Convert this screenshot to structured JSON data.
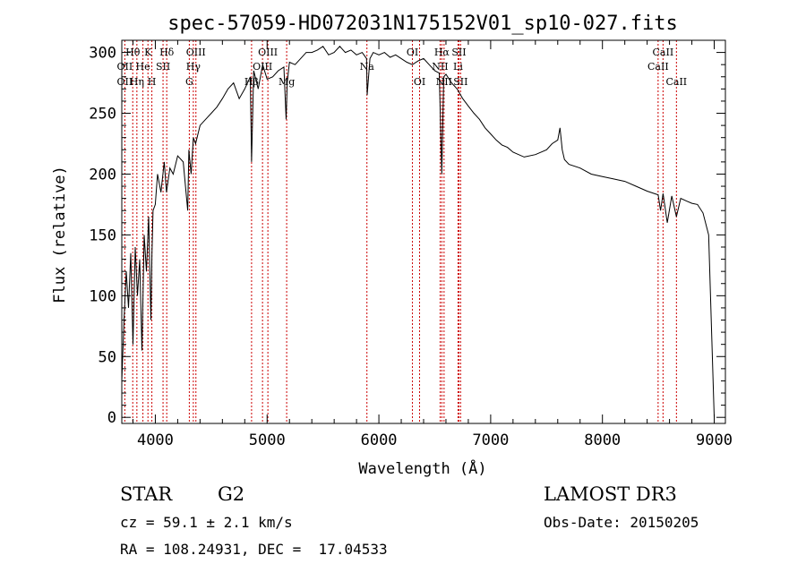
{
  "chart_data": {
    "type": "line",
    "title": "spec-57059-HD072031N175152V01_sp10-027.fits",
    "xlabel": "Wavelength (Å)",
    "ylabel": "Flux (relative)",
    "xlim": [
      3700,
      9100
    ],
    "ylim": [
      -5,
      310
    ],
    "x_ticks": [
      4000,
      5000,
      6000,
      7000,
      8000,
      9000
    ],
    "y_ticks": [
      0,
      50,
      100,
      150,
      200,
      250,
      300
    ],
    "grid": false,
    "series": [
      {
        "name": "flux",
        "x": [
          3700,
          3720,
          3740,
          3760,
          3780,
          3800,
          3820,
          3840,
          3860,
          3880,
          3900,
          3920,
          3940,
          3960,
          3970,
          3980,
          4000,
          4020,
          4050,
          4080,
          4100,
          4130,
          4160,
          4200,
          4250,
          4290,
          4300,
          4320,
          4340,
          4360,
          4400,
          4450,
          4500,
          4550,
          4600,
          4650,
          4700,
          4750,
          4800,
          4850,
          4861,
          4880,
          4920,
          4960,
          5000,
          5050,
          5100,
          5150,
          5170,
          5180,
          5200,
          5250,
          5300,
          5350,
          5400,
          5450,
          5500,
          5550,
          5600,
          5650,
          5700,
          5750,
          5800,
          5850,
          5890,
          5895,
          5920,
          5950,
          6000,
          6050,
          6100,
          6150,
          6200,
          6250,
          6300,
          6350,
          6400,
          6450,
          6500,
          6540,
          6563,
          6580,
          6600,
          6650,
          6700,
          6750,
          6800,
          6850,
          6900,
          6950,
          7000,
          7050,
          7100,
          7150,
          7200,
          7300,
          7400,
          7500,
          7550,
          7600,
          7620,
          7640,
          7660,
          7700,
          7800,
          7900,
          8000,
          8100,
          8200,
          8300,
          8400,
          8498,
          8520,
          8542,
          8580,
          8620,
          8662,
          8700,
          8750,
          8800,
          8850,
          8900,
          8950,
          9000
        ],
        "y": [
          30,
          80,
          120,
          90,
          135,
          60,
          140,
          100,
          130,
          55,
          150,
          120,
          165,
          80,
          135,
          170,
          175,
          200,
          185,
          210,
          185,
          205,
          200,
          215,
          210,
          170,
          220,
          200,
          230,
          225,
          240,
          245,
          250,
          255,
          262,
          270,
          275,
          262,
          270,
          280,
          210,
          285,
          270,
          290,
          278,
          280,
          285,
          288,
          245,
          275,
          292,
          290,
          295,
          300,
          300,
          302,
          305,
          298,
          300,
          305,
          300,
          302,
          298,
          300,
          295,
          265,
          295,
          300,
          298,
          300,
          296,
          298,
          295,
          292,
          290,
          293,
          295,
          290,
          285,
          283,
          200,
          280,
          282,
          275,
          270,
          262,
          256,
          250,
          245,
          238,
          233,
          228,
          224,
          222,
          218,
          214,
          216,
          220,
          225,
          228,
          238,
          220,
          212,
          208,
          205,
          200,
          198,
          196,
          194,
          190,
          186,
          183,
          170,
          184,
          160,
          182,
          165,
          180,
          178,
          176,
          175,
          168,
          150,
          0
        ]
      }
    ],
    "spectral_lines": [
      {
        "label": "Hθ",
        "x": 3798,
        "row": 1
      },
      {
        "label": "K",
        "x": 3934,
        "row": 1
      },
      {
        "label": "Hδ",
        "x": 4102,
        "row": 1
      },
      {
        "label": "OIII",
        "x": 4363,
        "row": 1
      },
      {
        "label": "OIII",
        "x": 5007,
        "row": 1
      },
      {
        "label": "OI",
        "x": 6300,
        "row": 1
      },
      {
        "label": "Hα",
        "x": 6563,
        "row": 1
      },
      {
        "label": "SII",
        "x": 6716,
        "row": 1
      },
      {
        "label": "CaII",
        "x": 8542,
        "row": 1
      },
      {
        "label": "OII",
        "x": 3727,
        "row": 2
      },
      {
        "label": "He",
        "x": 3889,
        "row": 2
      },
      {
        "label": "SII",
        "x": 4069,
        "row": 2
      },
      {
        "label": "Hγ",
        "x": 4340,
        "row": 2
      },
      {
        "label": "OIII",
        "x": 4959,
        "row": 2
      },
      {
        "label": "Na",
        "x": 5893,
        "row": 2
      },
      {
        "label": "NII",
        "x": 6548,
        "row": 2
      },
      {
        "label": "Li",
        "x": 6708,
        "row": 2
      },
      {
        "label": "CaII",
        "x": 8498,
        "row": 2
      },
      {
        "label": "OII",
        "x": 3727,
        "row": 3
      },
      {
        "label": "Hη",
        "x": 3835,
        "row": 3
      },
      {
        "label": "H",
        "x": 3969,
        "row": 3
      },
      {
        "label": "G",
        "x": 4304,
        "row": 3
      },
      {
        "label": "Hβ",
        "x": 4861,
        "row": 3
      },
      {
        "label": "Mg",
        "x": 5175,
        "row": 3
      },
      {
        "label": "OI",
        "x": 6364,
        "row": 3
      },
      {
        "label": "NII",
        "x": 6583,
        "row": 3
      },
      {
        "label": "SII",
        "x": 6731,
        "row": 3
      },
      {
        "label": "CaII",
        "x": 8662,
        "row": 3
      }
    ]
  },
  "info": {
    "object_class": "STAR",
    "subclass": "G2",
    "survey": "LAMOST DR3",
    "redshift": "cz = 59.1 ± 2.1 km/s",
    "obs_date": "Obs-Date: 20150205",
    "coords": "RA = 108.24931, DEC =  17.04533"
  },
  "colors": {
    "axis": "#000000",
    "spectrum": "#000000",
    "line_marker": "#cc0000"
  }
}
